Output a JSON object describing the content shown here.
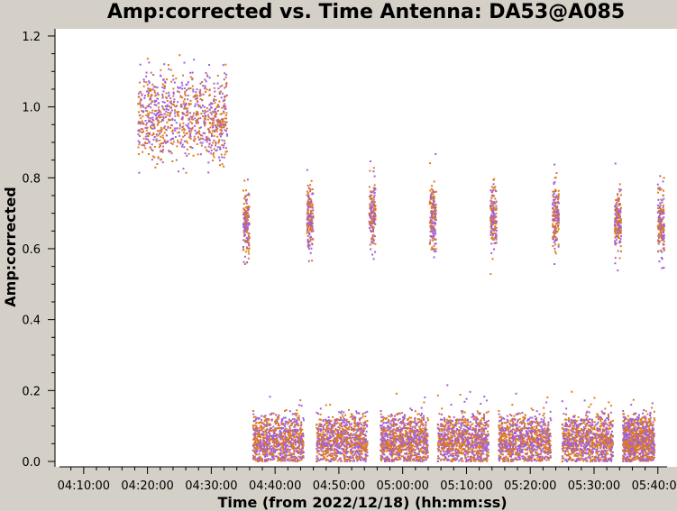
{
  "chart_data": {
    "type": "scatter",
    "title": "Amp:corrected vs. Time Antenna: DA53@A085",
    "xlabel": "Time (from 2022/12/18) (hh:mm:ss)",
    "ylabel": "Amp:corrected",
    "x_ticks": [
      "04:10:00",
      "04:20:00",
      "04:30:00",
      "04:40:00",
      "04:50:00",
      "05:00:00",
      "05:10:00",
      "05:20:00",
      "05:30:00",
      "05:40:00"
    ],
    "xlim": [
      "04:05:30",
      "05:43:00"
    ],
    "y_ticks": [
      "0.0",
      "0.2",
      "0.4",
      "0.6",
      "0.8",
      "1.0",
      "1.2"
    ],
    "ylim": [
      0.0,
      1.21
    ],
    "grid": false,
    "series_colors": [
      "#e07b1a",
      "#a060d8"
    ],
    "clusters": [
      {
        "t_start": "04:18:30",
        "t_end": "04:32:30",
        "y_center": 0.97,
        "y_spread": 0.06,
        "y_min": 0.81,
        "y_max": 1.16
      },
      {
        "t_start": "04:35:00",
        "t_end": "04:36:00",
        "y_center": 0.67,
        "y_spread": 0.045,
        "y_min": 0.54,
        "y_max": 0.81
      },
      {
        "t_start": "04:45:00",
        "t_end": "04:46:00",
        "y_center": 0.69,
        "y_spread": 0.045,
        "y_min": 0.56,
        "y_max": 0.85
      },
      {
        "t_start": "04:54:45",
        "t_end": "04:55:45",
        "y_center": 0.69,
        "y_spread": 0.045,
        "y_min": 0.55,
        "y_max": 0.85
      },
      {
        "t_start": "05:04:15",
        "t_end": "05:05:15",
        "y_center": 0.69,
        "y_spread": 0.045,
        "y_min": 0.53,
        "y_max": 0.91
      },
      {
        "t_start": "05:13:45",
        "t_end": "05:14:45",
        "y_center": 0.69,
        "y_spread": 0.045,
        "y_min": 0.52,
        "y_max": 0.83
      },
      {
        "t_start": "05:23:30",
        "t_end": "05:24:30",
        "y_center": 0.69,
        "y_spread": 0.045,
        "y_min": 0.48,
        "y_max": 0.84
      },
      {
        "t_start": "05:33:15",
        "t_end": "05:34:15",
        "y_center": 0.68,
        "y_spread": 0.045,
        "y_min": 0.5,
        "y_max": 0.86
      },
      {
        "t_start": "05:40:00",
        "t_end": "05:41:00",
        "y_center": 0.67,
        "y_spread": 0.045,
        "y_min": 0.49,
        "y_max": 0.85
      },
      {
        "t_start": "04:36:30",
        "t_end": "04:44:30",
        "y_center": 0.06,
        "y_spread": 0.035,
        "y_min": 0.0,
        "y_max": 0.21
      },
      {
        "t_start": "04:46:30",
        "t_end": "04:54:30",
        "y_center": 0.06,
        "y_spread": 0.035,
        "y_min": 0.0,
        "y_max": 0.17
      },
      {
        "t_start": "04:56:30",
        "t_end": "05:04:00",
        "y_center": 0.06,
        "y_spread": 0.035,
        "y_min": 0.0,
        "y_max": 0.22
      },
      {
        "t_start": "05:05:30",
        "t_end": "05:13:30",
        "y_center": 0.06,
        "y_spread": 0.035,
        "y_min": 0.0,
        "y_max": 0.23
      },
      {
        "t_start": "05:15:00",
        "t_end": "05:23:15",
        "y_center": 0.06,
        "y_spread": 0.035,
        "y_min": 0.0,
        "y_max": 0.22
      },
      {
        "t_start": "05:25:00",
        "t_end": "05:33:00",
        "y_center": 0.06,
        "y_spread": 0.035,
        "y_min": 0.0,
        "y_max": 0.21
      },
      {
        "t_start": "05:34:30",
        "t_end": "05:39:30",
        "y_center": 0.06,
        "y_spread": 0.035,
        "y_min": 0.0,
        "y_max": 0.2
      }
    ]
  }
}
